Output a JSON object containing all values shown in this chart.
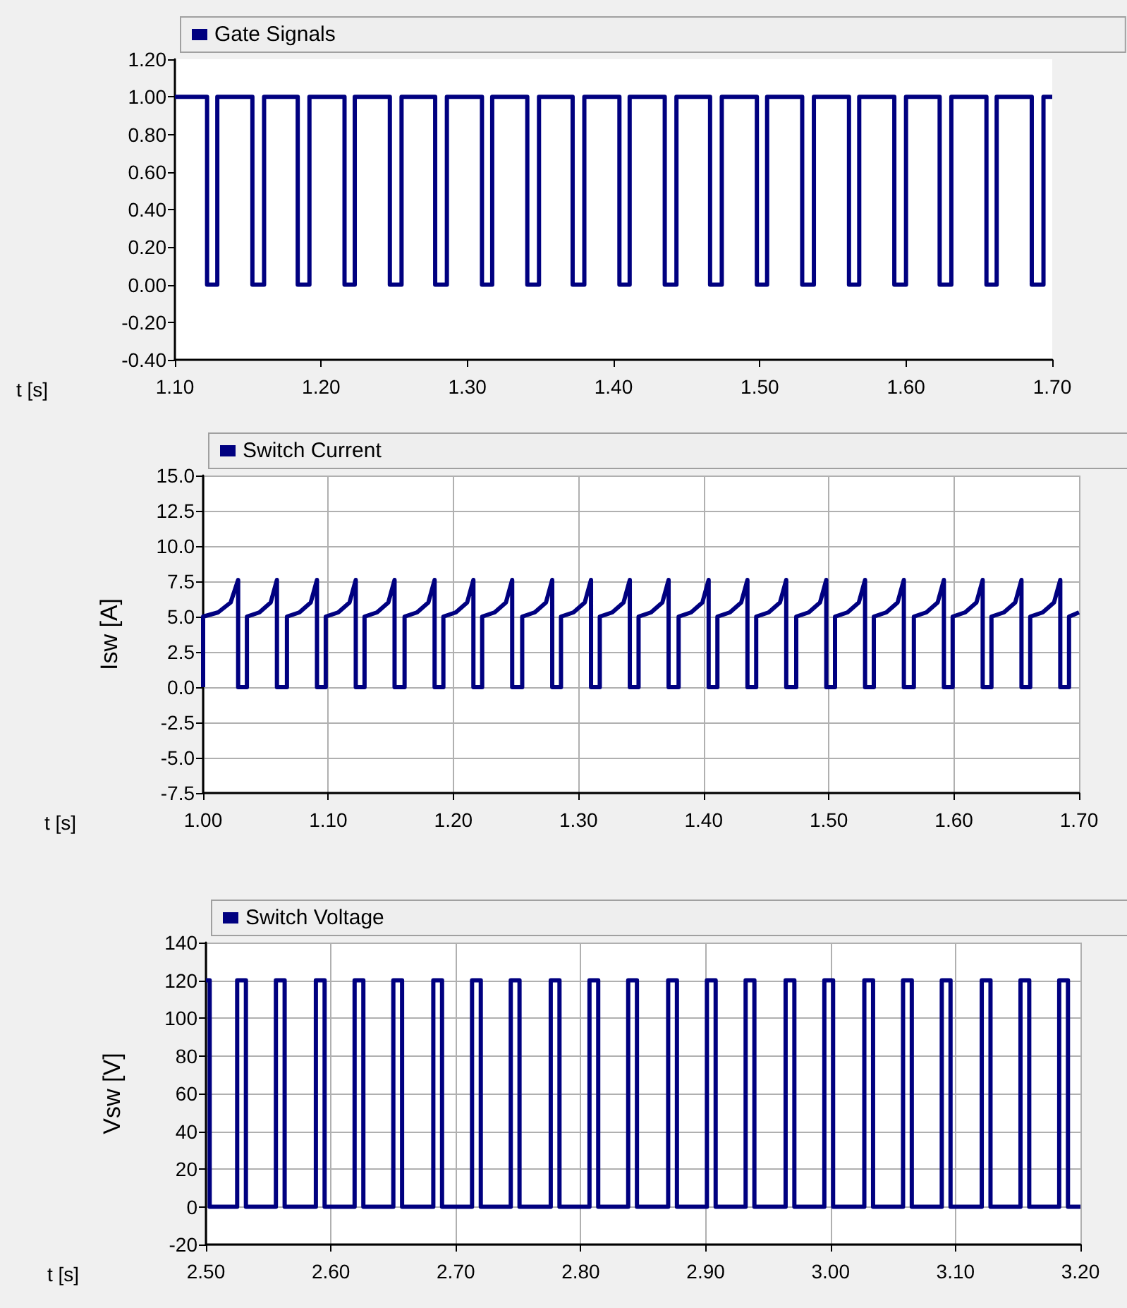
{
  "chart_data": [
    {
      "type": "step",
      "xlabel": "t [s]",
      "legend": "top",
      "grid": false,
      "marker": "none",
      "line_style": "solid",
      "xlim": [
        1.1,
        1.7
      ],
      "ylim": [
        -0.4,
        1.2
      ],
      "xticks": [
        {
          "value": 1.1,
          "label": "1.10"
        },
        {
          "value": 1.2,
          "label": "1.20"
        },
        {
          "value": 1.3,
          "label": "1.30"
        },
        {
          "value": 1.4,
          "label": "1.40"
        },
        {
          "value": 1.5,
          "label": "1.50"
        },
        {
          "value": 1.6,
          "label": "1.60"
        },
        {
          "value": 1.7,
          "label": "1.70"
        }
      ],
      "yticks": [
        {
          "value": -0.4,
          "label": "-0.40"
        },
        {
          "value": -0.2,
          "label": "-0.20"
        },
        {
          "value": 0,
          "label": "0.00"
        },
        {
          "value": 0.2,
          "label": "0.20"
        },
        {
          "value": 0.4,
          "label": "0.40"
        },
        {
          "value": 0.6,
          "label": "0.60"
        },
        {
          "value": 0.8,
          "label": "0.80"
        },
        {
          "value": 1.0,
          "label": "1.00"
        },
        {
          "value": 1.2,
          "label": "1.20"
        }
      ],
      "series": [
        {
          "name": "Gate Signals",
          "color": "#000080",
          "x": [
            1.1,
            1.122,
            1.129,
            1.153,
            1.161,
            1.184,
            1.192,
            1.216,
            1.223,
            1.247,
            1.255,
            1.278,
            1.286,
            1.31,
            1.317,
            1.341,
            1.349,
            1.372,
            1.38,
            1.404,
            1.411,
            1.435,
            1.443,
            1.466,
            1.474,
            1.498,
            1.505,
            1.529,
            1.537,
            1.561,
            1.568,
            1.592,
            1.6,
            1.623,
            1.631,
            1.655,
            1.662,
            1.686,
            1.694,
            1.7
          ],
          "values": [
            1,
            0,
            1,
            0,
            1,
            0,
            1,
            0,
            1,
            0,
            1,
            0,
            1,
            0,
            1,
            0,
            1,
            0,
            1,
            0,
            1,
            0,
            1,
            0,
            1,
            0,
            1,
            0,
            1,
            0,
            1,
            0,
            1,
            0,
            1,
            0,
            1,
            0,
            1,
            1
          ]
        }
      ]
    },
    {
      "type": "line",
      "xlabel": "t [s]",
      "ylabel": "Isw [A]",
      "legend": "top",
      "grid": true,
      "marker": "none",
      "line_style": "solid",
      "xlim": [
        1.0,
        1.7
      ],
      "ylim": [
        -7.5,
        15
      ],
      "xticks": [
        {
          "value": 1.0,
          "label": "1.00"
        },
        {
          "value": 1.1,
          "label": "1.10"
        },
        {
          "value": 1.2,
          "label": "1.20"
        },
        {
          "value": 1.3,
          "label": "1.30"
        },
        {
          "value": 1.4,
          "label": "1.40"
        },
        {
          "value": 1.5,
          "label": "1.50"
        },
        {
          "value": 1.6,
          "label": "1.60"
        },
        {
          "value": 1.7,
          "label": "1.70"
        }
      ],
      "yticks": [
        {
          "value": -7.5,
          "label": "-7.5"
        },
        {
          "value": -5,
          "label": "-5.0"
        },
        {
          "value": -2.5,
          "label": "-2.5"
        },
        {
          "value": 0,
          "label": "0.0"
        },
        {
          "value": 2.5,
          "label": "2.5"
        },
        {
          "value": 5,
          "label": "5.0"
        },
        {
          "value": 7.5,
          "label": "7.5"
        },
        {
          "value": 10,
          "label": "10.0"
        },
        {
          "value": 12.5,
          "label": "12.5"
        },
        {
          "value": 15,
          "label": "15.0"
        }
      ],
      "series": [
        {
          "name": "Switch Current",
          "color": "#000080",
          "x": [
            1.0,
            1.0,
            1.012,
            1.022,
            1.028,
            1.028,
            1.035,
            1.035,
            1.045,
            1.054,
            1.059,
            1.059,
            1.067,
            1.067,
            1.077,
            1.086,
            1.091,
            1.091,
            1.098,
            1.098,
            1.108,
            1.117,
            1.122,
            1.122,
            1.129,
            1.129,
            1.139,
            1.148,
            1.153,
            1.153,
            1.161,
            1.161,
            1.171,
            1.18,
            1.185,
            1.185,
            1.192,
            1.192,
            1.202,
            1.211,
            1.216,
            1.216,
            1.223,
            1.223,
            1.233,
            1.242,
            1.247,
            1.247,
            1.255,
            1.255,
            1.265,
            1.274,
            1.279,
            1.279,
            1.286,
            1.286,
            1.296,
            1.305,
            1.31,
            1.31,
            1.317,
            1.317,
            1.327,
            1.336,
            1.341,
            1.341,
            1.348,
            1.348,
            1.358,
            1.367,
            1.372,
            1.372,
            1.38,
            1.38,
            1.39,
            1.399,
            1.404,
            1.404,
            1.411,
            1.411,
            1.421,
            1.43,
            1.435,
            1.435,
            1.442,
            1.442,
            1.452,
            1.461,
            1.466,
            1.466,
            1.474,
            1.474,
            1.484,
            1.493,
            1.498,
            1.498,
            1.505,
            1.505,
            1.515,
            1.524,
            1.529,
            1.529,
            1.536,
            1.536,
            1.546,
            1.555,
            1.56,
            1.56,
            1.568,
            1.568,
            1.578,
            1.587,
            1.592,
            1.592,
            1.599,
            1.599,
            1.609,
            1.618,
            1.623,
            1.623,
            1.63,
            1.63,
            1.64,
            1.649,
            1.654,
            1.654,
            1.661,
            1.661,
            1.671,
            1.68,
            1.685,
            1.685,
            1.692,
            1.692,
            1.7
          ],
          "values": [
            0,
            5.0,
            5.3,
            6.0,
            7.6,
            0,
            0,
            5.0,
            5.3,
            6.0,
            7.6,
            0,
            0,
            5.0,
            5.3,
            6.0,
            7.6,
            0,
            0,
            5.0,
            5.3,
            6.0,
            7.6,
            0,
            0,
            5.0,
            5.3,
            6.0,
            7.6,
            0,
            0,
            5.0,
            5.3,
            6.0,
            7.6,
            0,
            0,
            5.0,
            5.3,
            6.0,
            7.6,
            0,
            0,
            5.0,
            5.3,
            6.0,
            7.6,
            0,
            0,
            5.0,
            5.3,
            6.0,
            7.6,
            0,
            0,
            5.0,
            5.3,
            6.0,
            7.6,
            0,
            0,
            5.0,
            5.3,
            6.0,
            7.6,
            0,
            0,
            5.0,
            5.3,
            6.0,
            7.6,
            0,
            0,
            5.0,
            5.3,
            6.0,
            7.6,
            0,
            0,
            5.0,
            5.3,
            6.0,
            7.6,
            0,
            0,
            5.0,
            5.3,
            6.0,
            7.6,
            0,
            0,
            5.0,
            5.3,
            6.0,
            7.6,
            0,
            0,
            5.0,
            5.3,
            6.0,
            7.6,
            0,
            0,
            5.0,
            5.3,
            6.0,
            7.6,
            0,
            0,
            5.0,
            5.3,
            6.0,
            7.6,
            0,
            0,
            5.0,
            5.3,
            6.0,
            7.6,
            0,
            0,
            5.0,
            5.3,
            6.0,
            7.6,
            0,
            0,
            5.0,
            5.3,
            6.0,
            7.6,
            0,
            0,
            5.0,
            5.3
          ]
        }
      ]
    },
    {
      "type": "step",
      "xlabel": "t [s]",
      "ylabel": "Vsw [V]",
      "legend": "top",
      "grid": true,
      "marker": "none",
      "line_style": "solid",
      "xlim": [
        2.5,
        3.2
      ],
      "ylim": [
        -20,
        140
      ],
      "xticks": [
        {
          "value": 2.5,
          "label": "2.50"
        },
        {
          "value": 2.6,
          "label": "2.60"
        },
        {
          "value": 2.7,
          "label": "2.70"
        },
        {
          "value": 2.8,
          "label": "2.80"
        },
        {
          "value": 2.9,
          "label": "2.90"
        },
        {
          "value": 3.0,
          "label": "3.00"
        },
        {
          "value": 3.1,
          "label": "3.10"
        },
        {
          "value": 3.2,
          "label": "3.20"
        }
      ],
      "yticks": [
        -20,
        0,
        20,
        40,
        60,
        80,
        100,
        120,
        140
      ],
      "series": [
        {
          "name": "Switch Voltage",
          "color": "#000080",
          "x": [
            2.5,
            2.503,
            2.525,
            2.532,
            2.556,
            2.563,
            2.588,
            2.595,
            2.619,
            2.626,
            2.65,
            2.657,
            2.682,
            2.689,
            2.713,
            2.72,
            2.744,
            2.751,
            2.776,
            2.783,
            2.807,
            2.814,
            2.838,
            2.845,
            2.87,
            2.877,
            2.901,
            2.908,
            2.932,
            2.939,
            2.964,
            2.971,
            2.995,
            3.002,
            3.027,
            3.034,
            3.058,
            3.065,
            3.089,
            3.096,
            3.121,
            3.128,
            3.152,
            3.159,
            3.183,
            3.19,
            3.2
          ],
          "values": [
            120,
            0,
            120,
            0,
            120,
            0,
            120,
            0,
            120,
            0,
            120,
            0,
            120,
            0,
            120,
            0,
            120,
            0,
            120,
            0,
            120,
            0,
            120,
            0,
            120,
            0,
            120,
            0,
            120,
            0,
            120,
            0,
            120,
            0,
            120,
            0,
            120,
            0,
            120,
            0,
            120,
            0,
            120,
            0,
            120,
            0,
            0
          ]
        }
      ]
    }
  ]
}
